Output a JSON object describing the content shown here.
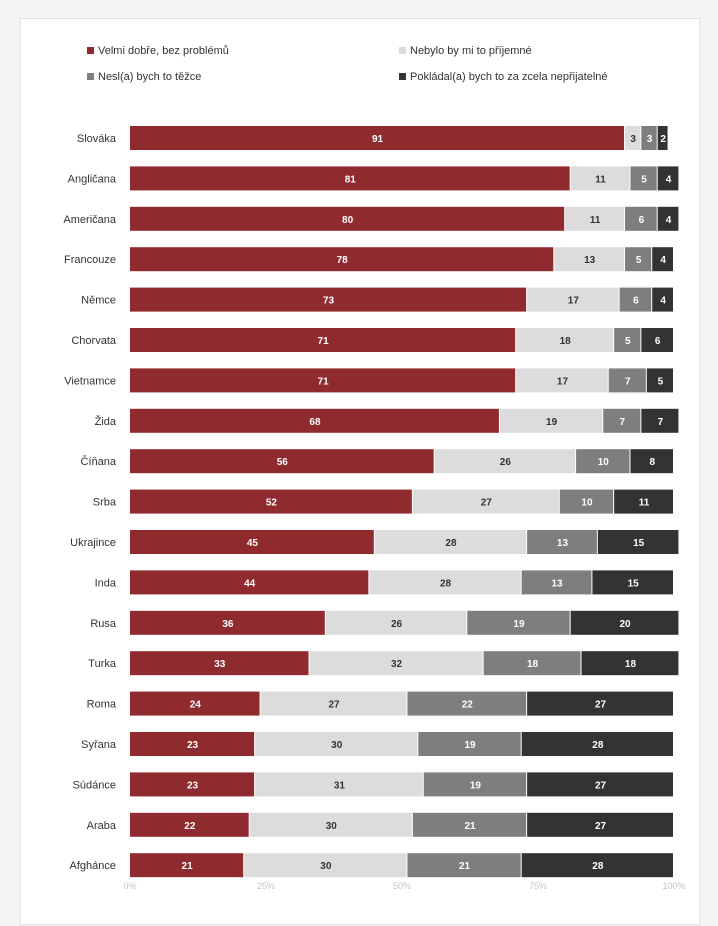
{
  "top_text": "",
  "chart_data": {
    "type": "bar",
    "orientation": "horizontal",
    "stacked": "percent",
    "title": "",
    "xlabel": "",
    "ylabel": "",
    "xlim": [
      0,
      100
    ],
    "x_ticks": [
      "0%",
      "25%",
      "50%",
      "75%",
      "100%"
    ],
    "grid": false,
    "legend_position": "top",
    "categories": [
      "Slováka",
      "Angličana",
      "Američana",
      "Francouze",
      "Němce",
      "Chorvata",
      "Vietnamce",
      "Žida",
      "Číňana",
      "Srba",
      "Ukrajince",
      "Inda",
      "Rusa",
      "Turka",
      "Roma",
      "Syřana",
      "Súdánce",
      "Araba",
      "Afghánce"
    ],
    "series": [
      {
        "name": "Velmi dobře, bez problémů",
        "color": "#8f2a2f",
        "label_color": "#ffffff",
        "values": [
          91,
          81,
          80,
          78,
          73,
          71,
          71,
          68,
          56,
          52,
          45,
          44,
          36,
          33,
          24,
          23,
          23,
          22,
          21
        ]
      },
      {
        "name": "Nebylo by mi to příjemné",
        "color": "#dcdcdc",
        "label_color": "#333333",
        "values": [
          3,
          11,
          11,
          13,
          17,
          18,
          17,
          19,
          26,
          27,
          28,
          28,
          26,
          32,
          27,
          30,
          31,
          30,
          30
        ]
      },
      {
        "name": "Nesl(a) bych to těžce",
        "color": "#7e7e7e",
        "label_color": "#ffffff",
        "values": [
          3,
          5,
          6,
          5,
          6,
          5,
          7,
          7,
          10,
          10,
          13,
          13,
          19,
          18,
          22,
          19,
          19,
          21,
          21
        ]
      },
      {
        "name": "Pokládal(a) bych to za zcela nepřijatelné",
        "color": "#333333",
        "label_color": "#ffffff",
        "values": [
          2,
          4,
          4,
          4,
          4,
          6,
          5,
          7,
          8,
          11,
          15,
          15,
          20,
          18,
          27,
          28,
          27,
          27,
          28
        ]
      }
    ]
  }
}
